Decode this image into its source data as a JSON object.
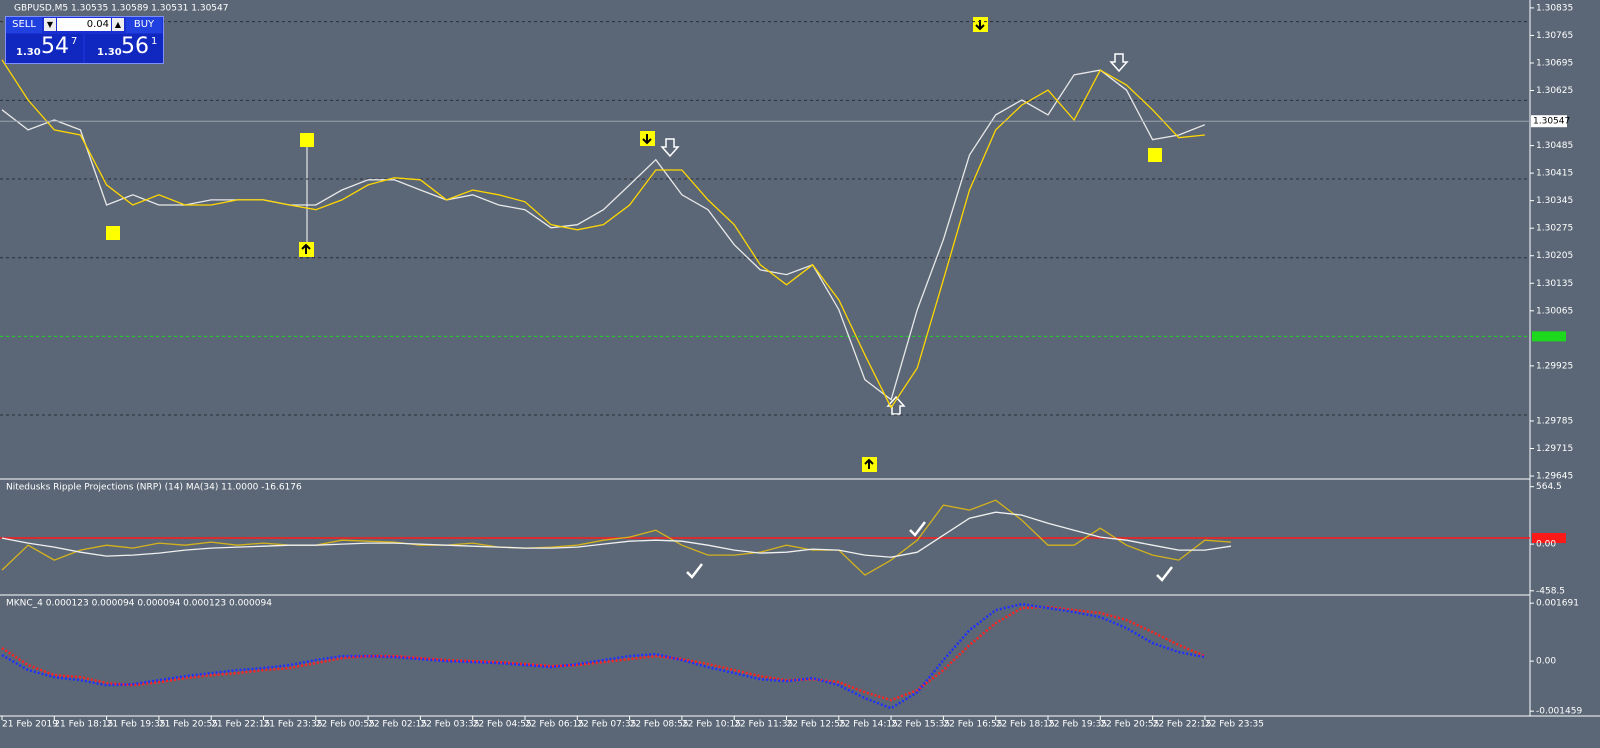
{
  "chart_data": [
    {
      "type": "line",
      "title": "GBPUSD,M5  1.30535 1.30589 1.30531 1.30547",
      "categories": [
        "21 Feb 2019",
        null,
        "21 Feb 18:15",
        null,
        "21 Feb 19:35",
        null,
        "21 Feb 20:55",
        null,
        "21 Feb 22:15",
        null,
        "21 Feb 23:35",
        null,
        "22 Feb 00:55",
        null,
        "22 Feb 02:15",
        null,
        "22 Feb 03:35",
        null,
        "22 Feb 04:55",
        null,
        "22 Feb 06:15",
        null,
        "22 Feb 07:35",
        null,
        "22 Feb 08:55",
        null,
        "22 Feb 10:15",
        null,
        "22 Feb 11:35",
        null,
        "22 Feb 12:55",
        null,
        "22 Feb 14:15",
        null,
        "22 Feb 15:35",
        null,
        "22 Feb 16:55",
        null,
        "22 Feb 18:15",
        null,
        "22 Feb 19:35",
        null,
        "22 Feb 20:55",
        null,
        "22 Feb 22:15",
        null,
        "22 Feb 23:35",
        null
      ],
      "series": [
        {
          "color": "#e8e8e8",
          "values": [
            1.30576,
            1.30525,
            1.3055,
            1.30525,
            1.30334,
            1.3036,
            1.30334,
            1.30334,
            1.30347,
            1.30347,
            1.30347,
            1.30334,
            1.30334,
            1.30372,
            1.30398,
            1.30398,
            1.30372,
            1.30347,
            1.3036,
            1.30334,
            1.30322,
            1.30276,
            1.30284,
            1.30322,
            1.30385,
            1.30449,
            1.3036,
            1.30322,
            1.30233,
            1.30169,
            1.30157,
            1.30182,
            1.30068,
            1.2989,
            1.29839,
            1.30068,
            1.30246,
            1.30461,
            1.30563,
            1.30601,
            1.30563,
            1.30665,
            1.30677,
            1.30626,
            1.305,
            1.30512,
            1.30538,
            null
          ]
        },
        {
          "color": "#ffd700",
          "values": [
            1.30703,
            1.30601,
            1.30525,
            1.30512,
            1.30385,
            1.30334,
            1.3036,
            1.30334,
            1.30334,
            1.30347,
            1.30347,
            1.30334,
            1.30322,
            1.30347,
            1.30385,
            1.30403,
            1.30398,
            1.30347,
            1.30372,
            1.3036,
            1.30342,
            1.30284,
            1.30271,
            1.30284,
            1.30334,
            1.30423,
            1.30423,
            1.30347,
            1.30284,
            1.30182,
            1.30131,
            1.30182,
            1.30093,
            1.29953,
            1.29819,
            1.2992,
            1.30144,
            1.30372,
            1.30525,
            1.30588,
            1.30626,
            1.3055,
            1.30677,
            1.30639,
            1.30576,
            1.30505,
            1.30512,
            null
          ]
        }
      ],
      "ylim": [
        1.2964,
        1.3085
      ],
      "yticks": [
        1.30835,
        1.30765,
        1.30695,
        1.30625,
        1.30485,
        1.30415,
        1.30345,
        1.30275,
        1.30205,
        1.30135,
        1.30065,
        1.29925,
        1.29785,
        1.29715,
        1.29645
      ],
      "grid_levels": [
        1.308,
        1.306,
        1.304,
        1.302,
        1.298
      ],
      "level_line": 1.3,
      "current_price": 1.30547
    },
    {
      "type": "line",
      "title": "Nitedusks Ripple Projections (NRP) (14) MA(34) 11.0000 -16.6176",
      "series": [
        {
          "color": "#d4b21c",
          "values": [
            -255,
            -10,
            -157,
            -59,
            -10,
            -39,
            10,
            -10,
            20,
            -10,
            10,
            -10,
            -10,
            39,
            29,
            20,
            -10,
            -10,
            10,
            -29,
            -39,
            -29,
            -10,
            39,
            69,
            137,
            -10,
            -108,
            -108,
            -79,
            -10,
            -59,
            -59,
            -304,
            -157,
            39,
            383,
            334,
            432,
            236,
            -10,
            -10,
            157,
            -10,
            -108,
            -157,
            39,
            20
          ]
        },
        {
          "color": "#f0f0f0",
          "values": [
            59,
            10,
            -29,
            -79,
            -118,
            -108,
            -88,
            -59,
            -39,
            -29,
            -20,
            -10,
            -10,
            0,
            10,
            10,
            0,
            -10,
            -20,
            -29,
            -39,
            -39,
            -29,
            0,
            29,
            39,
            29,
            -10,
            -59,
            -88,
            -79,
            -49,
            -59,
            -108,
            -128,
            -79,
            88,
            255,
            314,
            285,
            206,
            137,
            69,
            39,
            -10,
            -59,
            -59,
            -20
          ]
        }
      ],
      "ylim": [
        -480,
        630
      ],
      "yticks": [
        564.5,
        {
          "value": 0,
          "label": "0.00"
        },
        -458.5
      ],
      "level_line": 60
    },
    {
      "type": "line",
      "title": "MKNC_4 0.000123 0.000094 0.000094 0.000123 0.000094",
      "series": [
        {
          "color": "#ff2020",
          "values": [
            0.00038,
            -0.000117,
            -0.000409,
            -0.000467,
            -0.000642,
            -0.000701,
            -0.000613,
            -0.000496,
            -0.000409,
            -0.00035,
            -0.000263,
            -0.000204,
            -5.8e-05,
            8.8e-05,
            0.000146,
            0.000146,
            8.8e-05,
            2.9e-05,
            0,
            -2.9e-05,
            -8.8e-05,
            -0.000146,
            -0.000117,
            -2.9e-05,
            5.8e-05,
            0.000146,
            5.8e-05,
            -8.8e-05,
            -0.000263,
            -0.000438,
            -0.000555,
            -0.000526,
            -0.000613,
            -0.000905,
            -0.001139,
            -0.000847,
            -0.000263,
            0.000467,
            0.00111,
            0.001548,
            0.001577,
            0.001489,
            0.001402,
            0.001198,
            0.000847,
            0.000467,
            0.000146,
            null
          ]
        },
        {
          "color": "#2030ff",
          "values": [
            0.000175,
            -0.000263,
            -0.000467,
            -0.000555,
            -0.000701,
            -0.000672,
            -0.000555,
            -0.000438,
            -0.00035,
            -0.000263,
            -0.000204,
            -0.000117,
            2.9e-05,
            0.000146,
            0.000146,
            0.000117,
            5.8e-05,
            0,
            -2.9e-05,
            -5.8e-05,
            -0.000117,
            -0.000175,
            -8.8e-05,
            2.9e-05,
            0.000146,
            0.000204,
            2.9e-05,
            -0.000175,
            -0.00035,
            -0.000526,
            -0.000584,
            -0.000496,
            -0.000701,
            -0.00108,
            -0.001372,
            -0.000905,
            2.9e-05,
            0.000905,
            0.001489,
            0.001664,
            0.001548,
            0.001431,
            0.001285,
            0.000964,
            0.000526,
            0.000263,
            0.000117,
            null
          ]
        }
      ],
      "ylim": [
        -0.0016,
        0.00187
      ],
      "yticks": [
        0.001691,
        {
          "value": 0,
          "label": "0.00"
        },
        -0.001459
      ]
    }
  ],
  "trade_panel": {
    "sell": "SELL",
    "lot": "0.04",
    "buy": "BUY",
    "bid_big": "1.30",
    "bid_pips": "54",
    "bid_frac": "7",
    "ask_big": "1.30",
    "ask_pips": "56",
    "ask_frac": "1"
  }
}
